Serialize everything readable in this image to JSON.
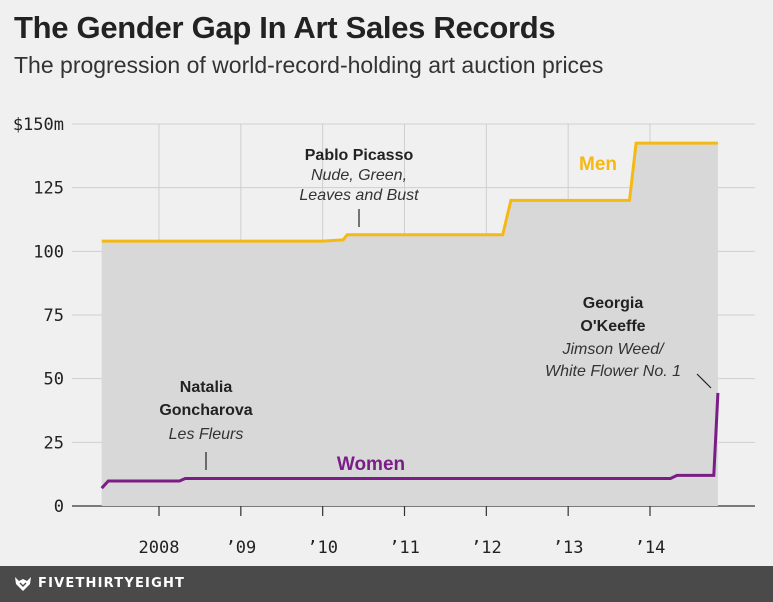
{
  "title": "The Gender Gap In Art Sales Records",
  "subtitle": "The progression of world-record-holding art auction prices",
  "footer": {
    "brand": "FIVETHIRTYEIGHT"
  },
  "chart_data": {
    "type": "line",
    "title": "The Gender Gap In Art Sales Records",
    "subtitle": "The progression of world-record-holding art auction prices",
    "ylim": [
      0,
      150
    ],
    "xlim": [
      2007,
      2015.2
    ],
    "y_ticks": [
      {
        "value": 0,
        "label": "0"
      },
      {
        "value": 25,
        "label": "25"
      },
      {
        "value": 50,
        "label": "50"
      },
      {
        "value": 75,
        "label": "75"
      },
      {
        "value": 100,
        "label": "100"
      },
      {
        "value": 125,
        "label": "125"
      },
      {
        "value": 150,
        "label": "$150m"
      }
    ],
    "x_ticks": [
      {
        "value": 2008,
        "label": "2008"
      },
      {
        "value": 2009,
        "label": "’09"
      },
      {
        "value": 2010,
        "label": "’10"
      },
      {
        "value": 2011,
        "label": "’11"
      },
      {
        "value": 2012,
        "label": "’12"
      },
      {
        "value": 2013,
        "label": "’13"
      },
      {
        "value": 2014,
        "label": "’14"
      }
    ],
    "grid": true,
    "series": [
      {
        "name": "Men",
        "color": "#f5b914",
        "points": [
          [
            2007.3,
            104
          ],
          [
            2010.0,
            104
          ],
          [
            2010.25,
            104.5
          ],
          [
            2010.3,
            106.5
          ],
          [
            2012.2,
            106.5
          ],
          [
            2012.3,
            120
          ],
          [
            2013.75,
            120
          ],
          [
            2013.83,
            142.5
          ],
          [
            2014.83,
            142.5
          ]
        ]
      },
      {
        "name": "Women",
        "color": "#7b1d86",
        "points": [
          [
            2007.3,
            7
          ],
          [
            2007.38,
            9.8
          ],
          [
            2008.25,
            9.8
          ],
          [
            2008.32,
            10.8
          ],
          [
            2014.25,
            10.8
          ],
          [
            2014.33,
            12
          ],
          [
            2014.78,
            12
          ],
          [
            2014.83,
            44.4
          ]
        ]
      }
    ],
    "annotations": [
      {
        "name": "Pablo Picasso",
        "work": [
          "Nude, Green,",
          "Leaves and Bust"
        ],
        "x": 2010.45,
        "y": 106.5
      },
      {
        "name": "Natalia Goncharova",
        "name_lines": [
          "Natalia",
          "Goncharova"
        ],
        "work": [
          "Les Fleurs"
        ],
        "x": 2008.5,
        "y": 10.8
      },
      {
        "name": "Georgia O'Keeffe",
        "name_lines": [
          "Georgia",
          "O'Keeffe"
        ],
        "work": [
          "Jimson Weed/",
          "White Flower No. 1"
        ],
        "x": 2014.83,
        "y": 44.4
      }
    ]
  }
}
